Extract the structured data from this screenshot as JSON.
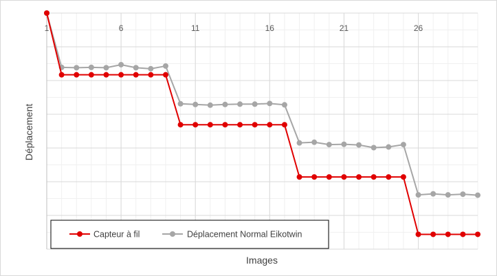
{
  "chart_data": {
    "type": "line",
    "title": "",
    "xlabel": "Images",
    "ylabel": "Déplacement",
    "x": [
      1,
      2,
      3,
      4,
      5,
      6,
      7,
      8,
      9,
      10,
      11,
      12,
      13,
      14,
      15,
      16,
      17,
      18,
      19,
      20,
      21,
      22,
      23,
      24,
      25,
      26,
      27,
      28,
      29,
      30
    ],
    "xticks": [
      1,
      6,
      11,
      16,
      21,
      26
    ],
    "xlim": [
      1,
      30
    ],
    "ylim": [
      -7,
      0
    ],
    "y_ticks_shown": false,
    "grid": "major and minor",
    "legend_position": "bottom-left",
    "series": [
      {
        "name": "Capteur à fil",
        "color": "#e00000",
        "values": [
          0,
          -1.83,
          -1.83,
          -1.83,
          -1.83,
          -1.83,
          -1.83,
          -1.83,
          -1.83,
          -3.31,
          -3.31,
          -3.31,
          -3.31,
          -3.31,
          -3.31,
          -3.31,
          -3.31,
          -4.86,
          -4.86,
          -4.86,
          -4.86,
          -4.86,
          -4.86,
          -4.86,
          -4.86,
          -6.56,
          -6.56,
          -6.56,
          -6.56,
          -6.56
        ]
      },
      {
        "name": "Déplacement Normal Eikotwin",
        "color": "#a6a6a6",
        "values": [
          0,
          -1.61,
          -1.62,
          -1.61,
          -1.62,
          -1.53,
          -1.62,
          -1.65,
          -1.57,
          -2.69,
          -2.71,
          -2.73,
          -2.71,
          -2.7,
          -2.7,
          -2.68,
          -2.72,
          -3.85,
          -3.83,
          -3.9,
          -3.89,
          -3.91,
          -3.99,
          -3.97,
          -3.9,
          -5.39,
          -5.36,
          -5.39,
          -5.37,
          -5.4
        ]
      }
    ]
  }
}
